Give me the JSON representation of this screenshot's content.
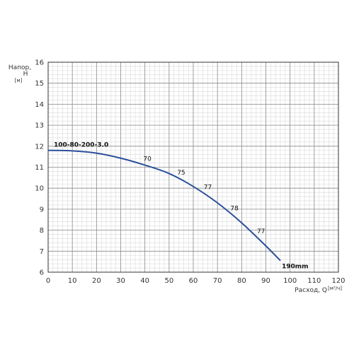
{
  "chart_data": {
    "type": "line",
    "title": "",
    "xlabel": "Расход, Q",
    "xlabel_unit": "[м³/ч]",
    "ylabel": "Напор, H",
    "ylabel_unit": "[м]",
    "xlim": [
      0,
      120
    ],
    "ylim": [
      6,
      16
    ],
    "x_ticks": [
      0,
      10,
      20,
      30,
      40,
      50,
      60,
      70,
      80,
      90,
      100,
      110,
      120
    ],
    "y_ticks": [
      6,
      7,
      8,
      9,
      10,
      11,
      12,
      13,
      14,
      15,
      16
    ],
    "grid": true,
    "series": [
      {
        "name": "100-80-200-3.0",
        "end_label": "190mm",
        "color": "#2b4f9a",
        "x": [
          0,
          10,
          20,
          30,
          40,
          50,
          60,
          70,
          80,
          90,
          96
        ],
        "y": [
          11.8,
          11.78,
          11.67,
          11.43,
          11.1,
          10.7,
          10.08,
          9.3,
          8.35,
          7.25,
          6.55
        ]
      }
    ],
    "annotations": [
      {
        "text": "70",
        "x": 41,
        "y": 11.3
      },
      {
        "text": "75",
        "x": 55,
        "y": 10.65
      },
      {
        "text": "77",
        "x": 66,
        "y": 9.95
      },
      {
        "text": "78",
        "x": 77,
        "y": 8.95
      },
      {
        "text": "77",
        "x": 88,
        "y": 7.85
      }
    ]
  }
}
